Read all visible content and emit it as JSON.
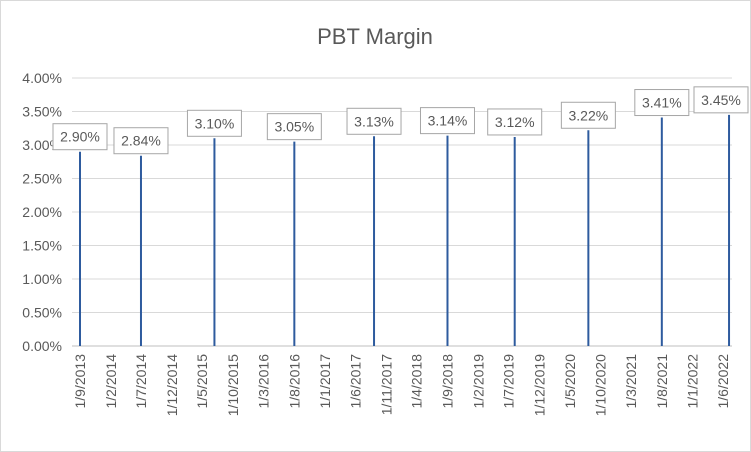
{
  "colors": {
    "series": "#2e5b9e",
    "grid": "#d9d9d9",
    "text": "#595959",
    "label_border": "#a6a6a6"
  },
  "chart_data": {
    "type": "line",
    "title": "PBT Margin",
    "xlabel": "",
    "ylabel": "",
    "ylim": [
      0,
      4.0
    ],
    "y_ticks": [
      "0.00%",
      "0.50%",
      "1.00%",
      "1.50%",
      "2.00%",
      "2.50%",
      "3.00%",
      "3.50%",
      "4.00%"
    ],
    "x_ticks": [
      "1/9/2013",
      "1/2/2014",
      "1/7/2014",
      "1/12/2014",
      "1/5/2015",
      "1/10/2015",
      "1/3/2016",
      "1/8/2016",
      "1/1/2017",
      "1/6/2017",
      "1/11/2017",
      "1/4/2018",
      "1/9/2018",
      "1/2/2019",
      "1/7/2019",
      "1/12/2019",
      "1/5/2020",
      "1/10/2020",
      "1/3/2021",
      "1/8/2021",
      "1/1/2022",
      "1/6/2022"
    ],
    "grid": true,
    "legend": "none",
    "series": [
      {
        "points": [
          {
            "x": "1/9/2013",
            "y": 2.9,
            "label": "2.90%"
          },
          {
            "x": "1/7/2014",
            "y": 2.84,
            "label": "2.84%"
          },
          {
            "x": "1/7/2015",
            "y": 3.1,
            "label": "3.10%"
          },
          {
            "x": "1/8/2016",
            "y": 3.05,
            "label": "3.05%"
          },
          {
            "x": "1/9/2017",
            "y": 3.13,
            "label": "3.13%"
          },
          {
            "x": "1/9/2018",
            "y": 3.14,
            "label": "3.14%"
          },
          {
            "x": "1/8/2019",
            "y": 3.12,
            "label": "3.12%"
          },
          {
            "x": "1/8/2020",
            "y": 3.22,
            "label": "3.22%"
          },
          {
            "x": "1/8/2021",
            "y": 3.41,
            "label": "3.41%"
          },
          {
            "x": "1/7/2022",
            "y": 3.45,
            "label": "3.45%"
          }
        ]
      }
    ]
  }
}
